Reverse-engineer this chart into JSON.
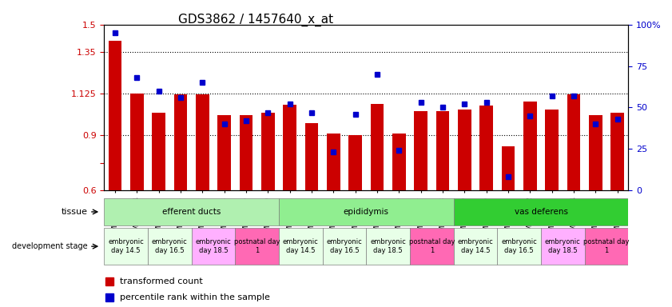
{
  "title": "GDS3862 / 1457640_x_at",
  "samples": [
    "GSM560923",
    "GSM560924",
    "GSM560925",
    "GSM560926",
    "GSM560927",
    "GSM560928",
    "GSM560929",
    "GSM560930",
    "GSM560931",
    "GSM560932",
    "GSM560933",
    "GSM560934",
    "GSM560935",
    "GSM560936",
    "GSM560937",
    "GSM560938",
    "GSM560939",
    "GSM560940",
    "GSM560941",
    "GSM560942",
    "GSM560943",
    "GSM560944",
    "GSM560945",
    "GSM560946"
  ],
  "red_values": [
    1.41,
    1.125,
    1.02,
    1.12,
    1.12,
    1.01,
    1.01,
    1.02,
    1.065,
    0.965,
    0.91,
    0.9,
    1.07,
    0.91,
    1.03,
    1.03,
    1.04,
    1.06,
    0.84,
    1.08,
    1.04,
    1.12,
    1.01,
    1.02
  ],
  "blue_values": [
    95,
    68,
    60,
    56,
    65,
    40,
    42,
    47,
    52,
    47,
    23,
    46,
    70,
    24,
    53,
    50,
    52,
    53,
    8,
    45,
    57,
    57,
    40,
    43
  ],
  "ylim_left": [
    0.6,
    1.5
  ],
  "ylim_right": [
    0,
    100
  ],
  "yticks_left": [
    0.6,
    0.75,
    0.9,
    1.125,
    1.35,
    1.5
  ],
  "ytick_labels_left": [
    "0.6",
    "",
    "0.9",
    "1.125",
    "1.35",
    "1.5"
  ],
  "yticks_right": [
    0,
    25,
    50,
    75,
    100
  ],
  "ytick_labels_right": [
    "0",
    "25",
    "50",
    "75",
    "100%"
  ],
  "hlines": [
    0.9,
    1.125,
    1.35
  ],
  "tissue_groups": [
    {
      "label": "efferent ducts",
      "start": 0,
      "end": 7,
      "color": "#90EE90"
    },
    {
      "label": "epididymis",
      "start": 8,
      "end": 15,
      "color": "#98FB98"
    },
    {
      "label": "vas deferens",
      "start": 16,
      "end": 23,
      "color": "#32CD32"
    }
  ],
  "dev_stage_groups": [
    {
      "label": "embryonic\nday 14.5",
      "start": 0,
      "end": 1,
      "color": "#E8FFE8"
    },
    {
      "label": "embryonic\nday 16.5",
      "start": 2,
      "end": 3,
      "color": "#E8FFE8"
    },
    {
      "label": "embryonic\nday 18.5",
      "start": 4,
      "end": 5,
      "color": "#FFB0FF"
    },
    {
      "label": "postnatal day\n1",
      "start": 6,
      "end": 7,
      "color": "#FF69B4"
    },
    {
      "label": "embryonic\nday 14.5",
      "start": 8,
      "end": 9,
      "color": "#E8FFE8"
    },
    {
      "label": "embryonic\nday 16.5",
      "start": 10,
      "end": 11,
      "color": "#E8FFE8"
    },
    {
      "label": "embryonic\nday 18.5",
      "start": 12,
      "end": 13,
      "color": "#E8FFE8"
    },
    {
      "label": "postnatal day\n1",
      "start": 14,
      "end": 15,
      "color": "#FF69B4"
    },
    {
      "label": "embryonic\nday 14.5",
      "start": 16,
      "end": 17,
      "color": "#E8FFE8"
    },
    {
      "label": "embryonic\nday 16.5",
      "start": 18,
      "end": 19,
      "color": "#E8FFE8"
    },
    {
      "label": "embryonic\nday 18.5",
      "start": 20,
      "end": 21,
      "color": "#FFB0FF"
    },
    {
      "label": "postnatal day\n1",
      "start": 22,
      "end": 23,
      "color": "#FF69B4"
    }
  ],
  "bar_color": "#CC0000",
  "dot_color": "#0000CC",
  "background_color": "#FFFFFF",
  "grid_color": "#000000",
  "title_fontsize": 11,
  "axis_label_color_left": "#CC0000",
  "axis_label_color_right": "#0000CC"
}
